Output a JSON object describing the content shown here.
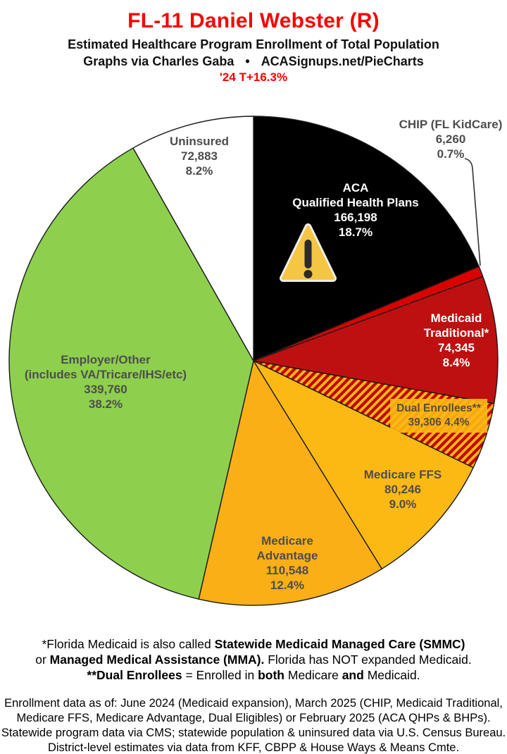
{
  "header": {
    "title": "FL-11 Daniel Webster (R)",
    "subtitle": "Estimated Healthcare Program Enrollment of Total Population",
    "byline_left": "Graphs via Charles Gaba",
    "byline_bullet": "•",
    "byline_right": "ACASignups.net/PieCharts",
    "trend": "'24 T+16.3%",
    "accent_color": "#F90000"
  },
  "chart_data": {
    "type": "pie",
    "title": "FL-11 Daniel Webster (R) — Estimated Healthcare Program Enrollment of Total Population",
    "start_angle_deg": 0,
    "direction": "clockwise",
    "stroke_color": "#1A1A1A",
    "hatch_colors": [
      "#C00000",
      "#FDB913"
    ],
    "segments": [
      {
        "name": "ACA Qualified Health Plans",
        "label_lines": [
          "ACA",
          "Qualified Health Plans"
        ],
        "value": 166198,
        "value_str": "166,198",
        "pct": 18.7,
        "pct_str": "18.7%",
        "color": "#000000",
        "text_color": "#FFFFFF"
      },
      {
        "name": "CHIP (FL KidCare)",
        "label_lines": [
          "CHIP (FL KidCare)"
        ],
        "value": 6260,
        "value_str": "6,260",
        "pct": 0.7,
        "pct_str": "0.7%",
        "color": "#DB0000",
        "text_color": "#4D4D4D"
      },
      {
        "name": "Medicaid Traditional*",
        "label_lines": [
          "Medicaid",
          "Traditional*"
        ],
        "value": 74345,
        "value_str": "74,345",
        "pct": 8.4,
        "pct_str": "8.4%",
        "color": "#BE1010",
        "text_color": "#FFFFFF"
      },
      {
        "name": "Dual Enrollees**",
        "label_lines": [
          "Dual Enrollees**"
        ],
        "value": 39306,
        "value_str": "39,306",
        "pct": 4.4,
        "pct_str": "4.4%",
        "value_pct_str": "39,306 4.4%",
        "pattern": "hatch",
        "text_color": "#564F38"
      },
      {
        "name": "Medicare FFS",
        "label_lines": [
          "Medicare FFS"
        ],
        "value": 80246,
        "value_str": "80,246",
        "pct": 9.0,
        "pct_str": "9.0%",
        "color": "#FDB913",
        "text_color": "#4D4D4D"
      },
      {
        "name": "Medicare Advantage",
        "label_lines": [
          "Medicare",
          "Advantage"
        ],
        "value": 110548,
        "value_str": "110,548",
        "pct": 12.4,
        "pct_str": "12.4%",
        "color": "#FBAF17",
        "text_color": "#4D4D4D"
      },
      {
        "name": "Employer/Other (includes VA/Tricare/IHS/etc)",
        "label_lines": [
          "Employer/Other",
          "(includes VA/Tricare/IHS/etc)"
        ],
        "value": 339760,
        "value_str": "339,760",
        "pct": 38.2,
        "pct_str": "38.2%",
        "color": "#8ED04E",
        "text_color": "#4D4D4D"
      },
      {
        "name": "Uninsured",
        "label_lines": [
          "Uninsured"
        ],
        "value": 72883,
        "value_str": "72,883",
        "pct": 8.2,
        "pct_str": "8.2%",
        "color": "#FFFFFF",
        "text_color": "#4D4D4D"
      }
    ],
    "icon": "warning-triangle"
  },
  "footnote_medicaid": {
    "l1_regular": "*Florida Medicaid is also called ",
    "l1_bold": "Statewide Medicaid Managed Care (SMMC)",
    "l2_regular1": "or ",
    "l2_bold": "Managed Medical Assistance (MMA).",
    "l2_regular2": " Florida has NOT expanded Medicaid.",
    "l3_bold1": "**Dual Enrollees",
    "l3_regular1": " = Enrolled in ",
    "l3_bold2": "both",
    "l3_regular2": " Medicare ",
    "l3_bold3": "and",
    "l3_regular3": " Medicaid."
  },
  "source_note": {
    "lines": [
      "Enrollment data as of: June 2024 (Medicaid expansion), March 2025 (CHIP, Medicaid Traditional,",
      "Medicare FFS, Medicare Advantage, Dual Eligibles) or February 2025 (ACA QHPs & BHPs).",
      "Statewide program data via CMS; statewide population & uninsured data via U.S. Census Bureau.",
      "District-level estimates via data from KFF, CBPP & House Ways & Means Cmte."
    ]
  }
}
